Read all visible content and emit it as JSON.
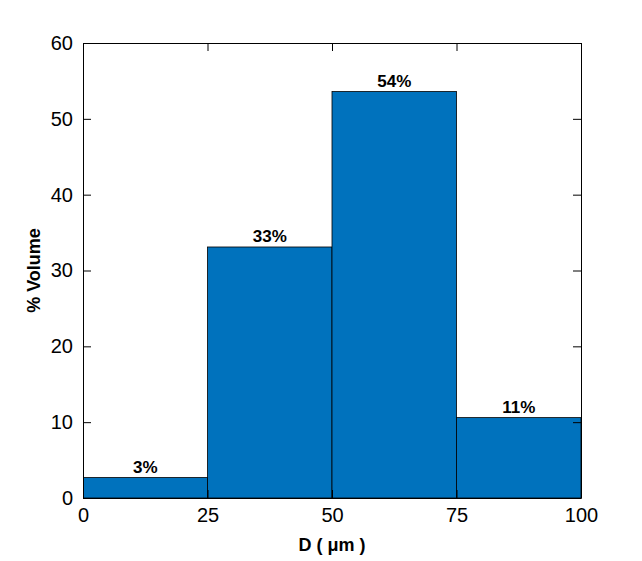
{
  "chart_data": {
    "type": "histogram",
    "bins": [
      0,
      25,
      50,
      75,
      100
    ],
    "values": [
      2.7,
      33.1,
      53.6,
      10.6
    ],
    "value_labels": [
      "3%",
      "33%",
      "54%",
      "11%"
    ],
    "data_labels": true,
    "color": "#0072bd",
    "xlabel": "D ( μm )",
    "ylabel": "% Volume",
    "xlim": [
      0,
      100
    ],
    "ylim": [
      0,
      60
    ],
    "xticks": [
      0,
      25,
      50,
      75,
      100
    ],
    "yticks": [
      0,
      10,
      20,
      30,
      40,
      50,
      60
    ],
    "grid": false
  }
}
